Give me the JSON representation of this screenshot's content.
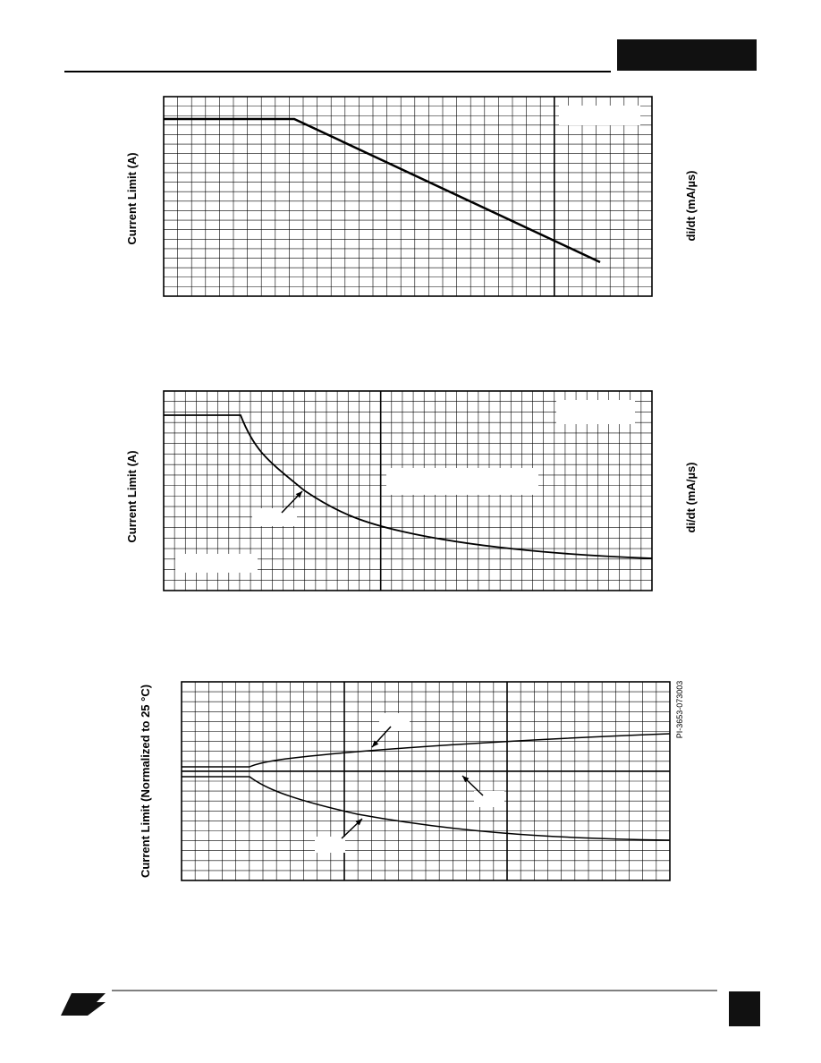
{
  "charts": [
    {
      "y_label": "Current Limit (A)",
      "right_label": "di/dt (mA/µs)"
    },
    {
      "y_label": "Current Limit (A)",
      "right_label": "di/dt (mA/µs)"
    },
    {
      "y_label": "Current Limit (Normalized to 25 °C)",
      "code": "PI-3653-073003"
    }
  ]
}
